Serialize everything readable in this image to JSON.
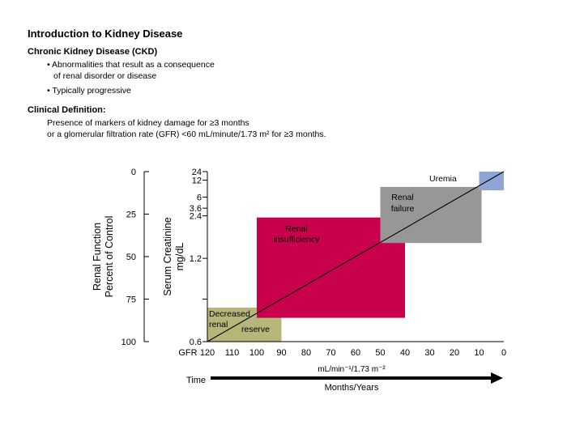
{
  "slide": {
    "title": "Introduction to Kidney Disease",
    "ckd_heading": "Chronic Kidney Disease (CKD)",
    "bullet1_line1": "• Abnormalities that result as a consequence",
    "bullet1_line2": "of renal disorder or disease",
    "bullet2": "• Typically progressive",
    "clinical_heading": "Clinical Definition:",
    "clinical_line1": "Presence of markers of kidney damage for ≥3 months",
    "clinical_line2": "or a glomerular filtration rate (GFR) <60 mL/minute/1.73 m² for ≥3 months."
  },
  "chart_data": {
    "type": "diagram",
    "x_axis": {
      "prefix": "GFR",
      "ticks": [
        120,
        110,
        100,
        90,
        80,
        70,
        60,
        50,
        40,
        30,
        20,
        10,
        0
      ],
      "unit_label": "mL/min⁻¹/1.73 m⁻²",
      "range": [
        120,
        0
      ]
    },
    "renal_function_axis": {
      "label_line1": "Renal Function",
      "label_line2": "Percent of Control",
      "ticks": [
        0,
        25,
        50,
        75,
        100
      ],
      "range": [
        0,
        100
      ]
    },
    "creatinine_axis": {
      "label_line1": "Serum Creatinine",
      "label_line2": "mg/dL",
      "ticks": [
        "24",
        "12",
        "6",
        "3.6",
        "2.4",
        "1.2",
        "0.6"
      ],
      "tick_function_values": [
        0,
        5,
        15,
        21.5,
        26,
        51,
        100
      ]
    },
    "regions": [
      {
        "name": "decreased-reserve",
        "label_lines": [
          "Decreased",
          "renal"
        ],
        "label2": "reserve",
        "gfr_from": 120,
        "gfr_to": 90,
        "function_from": 80,
        "function_to": 100,
        "color": "#b6b67a"
      },
      {
        "name": "renal-insufficiency",
        "label_lines": [
          "Renal",
          "insufficiency"
        ],
        "gfr_from": 100,
        "gfr_to": 40,
        "function_from": 27,
        "function_to": 86,
        "color": "#c8004e"
      },
      {
        "name": "renal-failure",
        "label_lines": [
          "Renal",
          "failure"
        ],
        "gfr_from": 50,
        "gfr_to": 9,
        "function_from": 9,
        "function_to": 42,
        "color": "#979797"
      },
      {
        "name": "uremia",
        "label_lines": [
          "Uremia"
        ],
        "gfr_from": 10,
        "gfr_to": 0,
        "function_from": 0,
        "function_to": 11,
        "color": "#8fa6d5"
      }
    ],
    "trend_line": {
      "from": {
        "gfr": 120,
        "function": 100
      },
      "to": {
        "gfr": 0,
        "function": 0
      }
    },
    "time_axis": {
      "label": "Time",
      "sublabel": "Months/Years"
    }
  }
}
